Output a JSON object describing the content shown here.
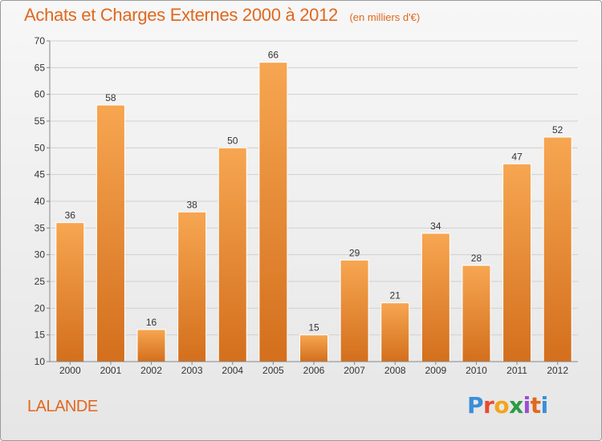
{
  "header": {
    "title": "Achats et Charges Externes 2000 à 2012",
    "subtitle": "(en milliers d'€)"
  },
  "footer": {
    "commune": "LALANDE",
    "logo_text": "Proxiti"
  },
  "colors": {
    "accent": "#e0681f",
    "bar_light": "#f7a651",
    "bar_dark": "#d36f1d",
    "grid": "#d0d0d0"
  },
  "chart_data": {
    "type": "bar",
    "categories": [
      "2000",
      "2001",
      "2002",
      "2003",
      "2004",
      "2005",
      "2006",
      "2007",
      "2008",
      "2009",
      "2010",
      "2011",
      "2012"
    ],
    "values": [
      36,
      58,
      16,
      38,
      50,
      66,
      15,
      29,
      21,
      34,
      28,
      47,
      52
    ],
    "ylim": [
      10,
      70
    ],
    "yticks": [
      10,
      15,
      20,
      25,
      30,
      35,
      40,
      45,
      50,
      55,
      60,
      65,
      70
    ],
    "grid": true,
    "data_labels": true
  }
}
